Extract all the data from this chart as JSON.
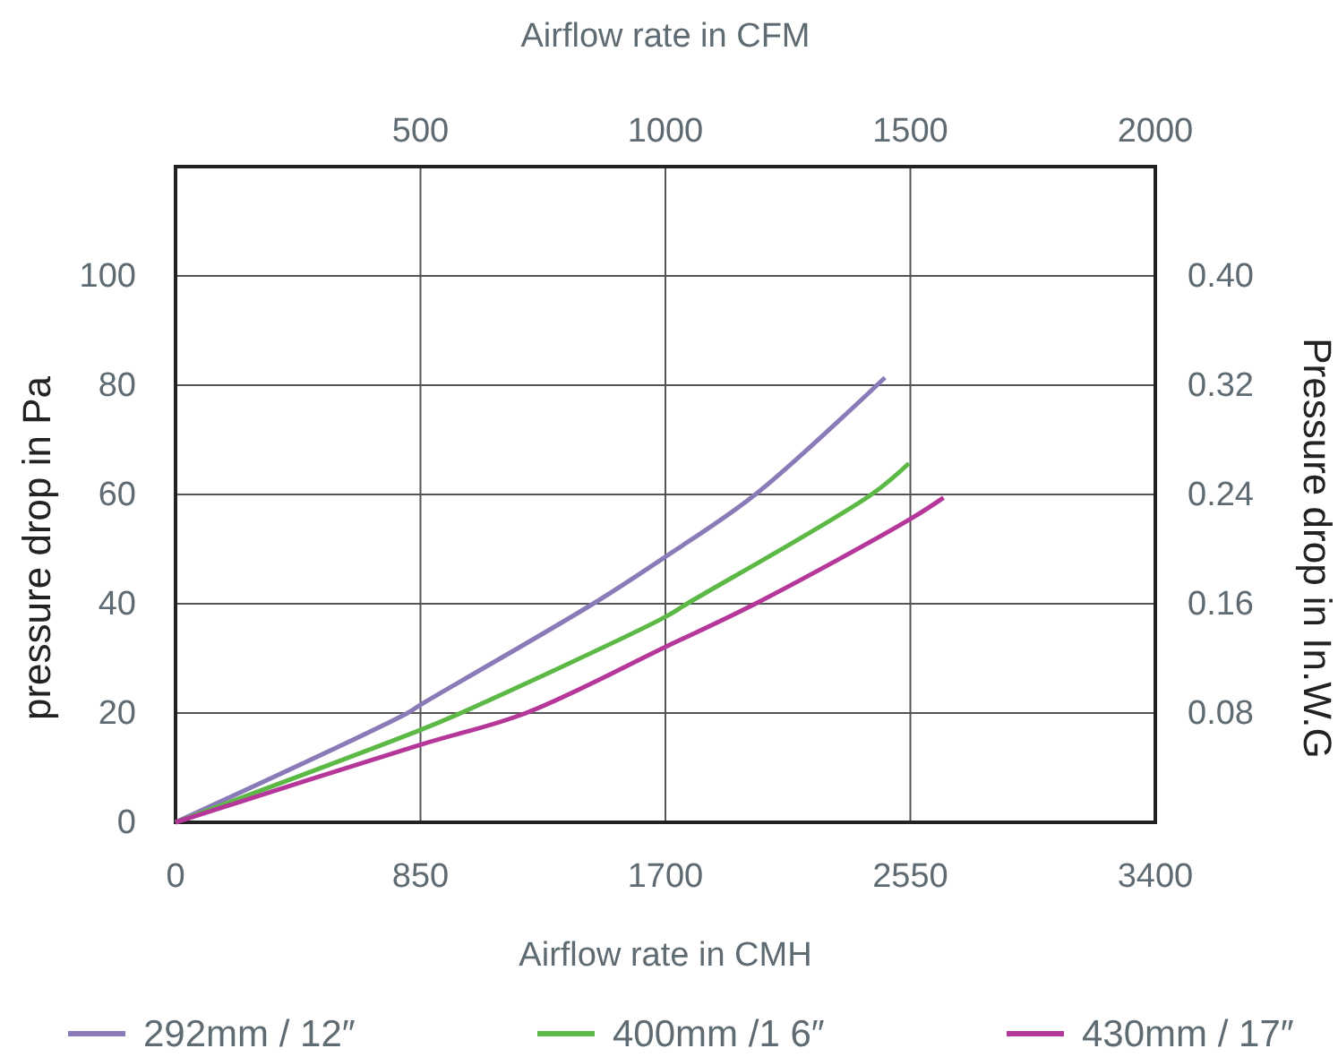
{
  "chart_data": {
    "type": "line",
    "xlabel": "Airflow rate in CMH",
    "x2label": "Airflow rate in CFM",
    "ylabel": "pressure drop in Pa",
    "y2label": "Pressure drop in In.W.G",
    "xlim": [
      0,
      3400
    ],
    "xticks": [
      0,
      850,
      1700,
      2550,
      3400
    ],
    "x2lim": [
      0,
      2000
    ],
    "x2ticks": [
      500,
      1000,
      1500,
      2000
    ],
    "ylim": [
      0,
      120
    ],
    "yticks": [
      0,
      20,
      40,
      60,
      80,
      100
    ],
    "y2lim": [
      0,
      0.48
    ],
    "y2ticks": [
      0.08,
      0.16,
      0.24,
      0.32,
      {
        "value": 0.4,
        "label": "0.40"
      }
    ],
    "grid": true,
    "legend": "bottom",
    "marker": "none",
    "line_style": "solid",
    "series": [
      {
        "name": "292mm / 12″",
        "color": "#8a7bb8",
        "x": [
          0,
          805,
          850,
          1449,
          1700,
          2012,
          2462
        ],
        "values": [
          0,
          20,
          21.5,
          40,
          48.6,
          60,
          81.4
        ]
      },
      {
        "name": "400mm /1 6″",
        "color": "#5cb946",
        "x": [
          0,
          850,
          990,
          1700,
          1775,
          2415,
          2545
        ],
        "values": [
          0,
          16.9,
          20,
          37.6,
          40,
          60,
          65.7
        ]
      },
      {
        "name": "430mm / 17″",
        "color": "#b5379a",
        "x": [
          0,
          850,
          1216,
          1700,
          2012,
          2550,
          2665
        ],
        "values": [
          0,
          14.2,
          20,
          32.1,
          40,
          55.5,
          59.4
        ]
      }
    ]
  }
}
